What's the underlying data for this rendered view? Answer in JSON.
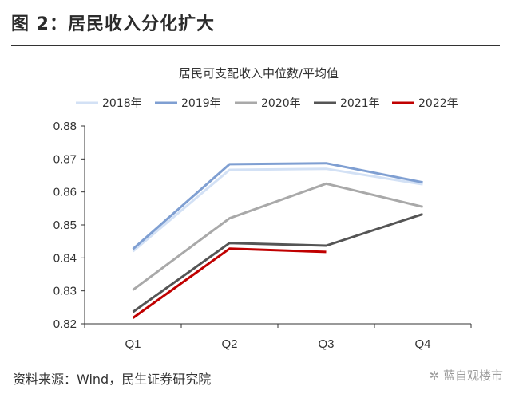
{
  "figure": {
    "title": "图 2：居民收入分化扩大",
    "source": "资料来源：Wind，民生证券研究院",
    "watermark": "✲ 蓝自观楼市"
  },
  "chart_data": {
    "type": "line",
    "title": "居民可支配收入中位数/平均值",
    "categories": [
      "Q1",
      "Q2",
      "Q3",
      "Q4"
    ],
    "ylim": [
      0.82,
      0.88
    ],
    "yticks": [
      "0.88",
      "0.87",
      "0.86",
      "0.85",
      "0.84",
      "0.83",
      "0.82"
    ],
    "ytick_values": [
      0.88,
      0.87,
      0.86,
      0.85,
      0.84,
      0.83,
      0.82
    ],
    "grid": false,
    "legend_position": "top",
    "series": [
      {
        "name": "2018年",
        "color": "#d3e1f5",
        "values": [
          0.842,
          0.8667,
          0.867,
          0.8623
        ]
      },
      {
        "name": "2019年",
        "color": "#7f9fd2",
        "values": [
          0.8427,
          0.8684,
          0.8687,
          0.8629
        ]
      },
      {
        "name": "2020年",
        "color": "#a9a9a9",
        "values": [
          0.8303,
          0.852,
          0.8625,
          0.8555
        ]
      },
      {
        "name": "2021年",
        "color": "#555555",
        "values": [
          0.8236,
          0.8445,
          0.8437,
          0.8533
        ]
      },
      {
        "name": "2022年",
        "color": "#c00000",
        "values": [
          0.8218,
          0.8428,
          0.8418,
          null
        ]
      }
    ]
  }
}
